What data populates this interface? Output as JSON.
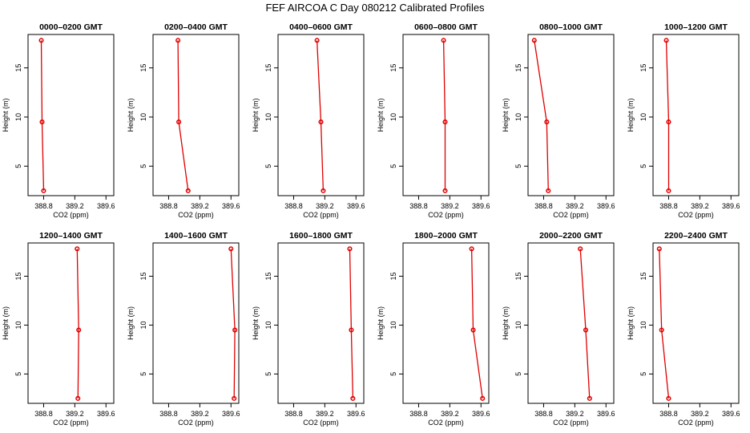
{
  "title": "FEF AIRCOA C  Day 080212  Calibrated Profiles",
  "colors": {
    "series": "#e00000",
    "axes": "#000000"
  },
  "chart_data": {
    "type": "line",
    "xlabel": "CO2 (ppm)",
    "ylabel": "Height (m)",
    "xlim": [
      388.6,
      389.7
    ],
    "ylim": [
      2,
      18.4
    ],
    "x_ticks": [
      388.8,
      389.2,
      389.6
    ],
    "x_tick_labels": [
      "388.8",
      "389.2",
      "389.6"
    ],
    "y_ticks": [
      5,
      10,
      15
    ],
    "y_tick_labels": [
      "5",
      "10",
      "15"
    ],
    "heights": [
      17.8,
      9.5,
      2.5
    ],
    "panels": [
      {
        "title": "0000–0200 GMT",
        "co2": [
          388.77,
          388.78,
          388.8
        ]
      },
      {
        "title": "0200–0400 GMT",
        "co2": [
          388.92,
          388.93,
          389.05
        ]
      },
      {
        "title": "0400–0600 GMT",
        "co2": [
          389.1,
          389.15,
          389.18
        ]
      },
      {
        "title": "0600–0800 GMT",
        "co2": [
          389.12,
          389.14,
          389.14
        ]
      },
      {
        "title": "0800–1000 GMT",
        "co2": [
          388.68,
          388.84,
          388.86
        ]
      },
      {
        "title": "1000–1200 GMT",
        "co2": [
          388.77,
          388.8,
          388.8
        ]
      },
      {
        "title": "1200–1400 GMT",
        "co2": [
          389.23,
          389.25,
          389.24
        ]
      },
      {
        "title": "1400–1600 GMT",
        "co2": [
          389.6,
          389.65,
          389.64
        ]
      },
      {
        "title": "1600–1800 GMT",
        "co2": [
          389.52,
          389.54,
          389.56
        ]
      },
      {
        "title": "1800–2000 GMT",
        "co2": [
          389.48,
          389.5,
          389.62
        ]
      },
      {
        "title": "2000–2200 GMT",
        "co2": [
          389.27,
          389.34,
          389.39
        ]
      },
      {
        "title": "2200–2400 GMT",
        "co2": [
          388.68,
          388.71,
          388.8
        ]
      }
    ]
  }
}
